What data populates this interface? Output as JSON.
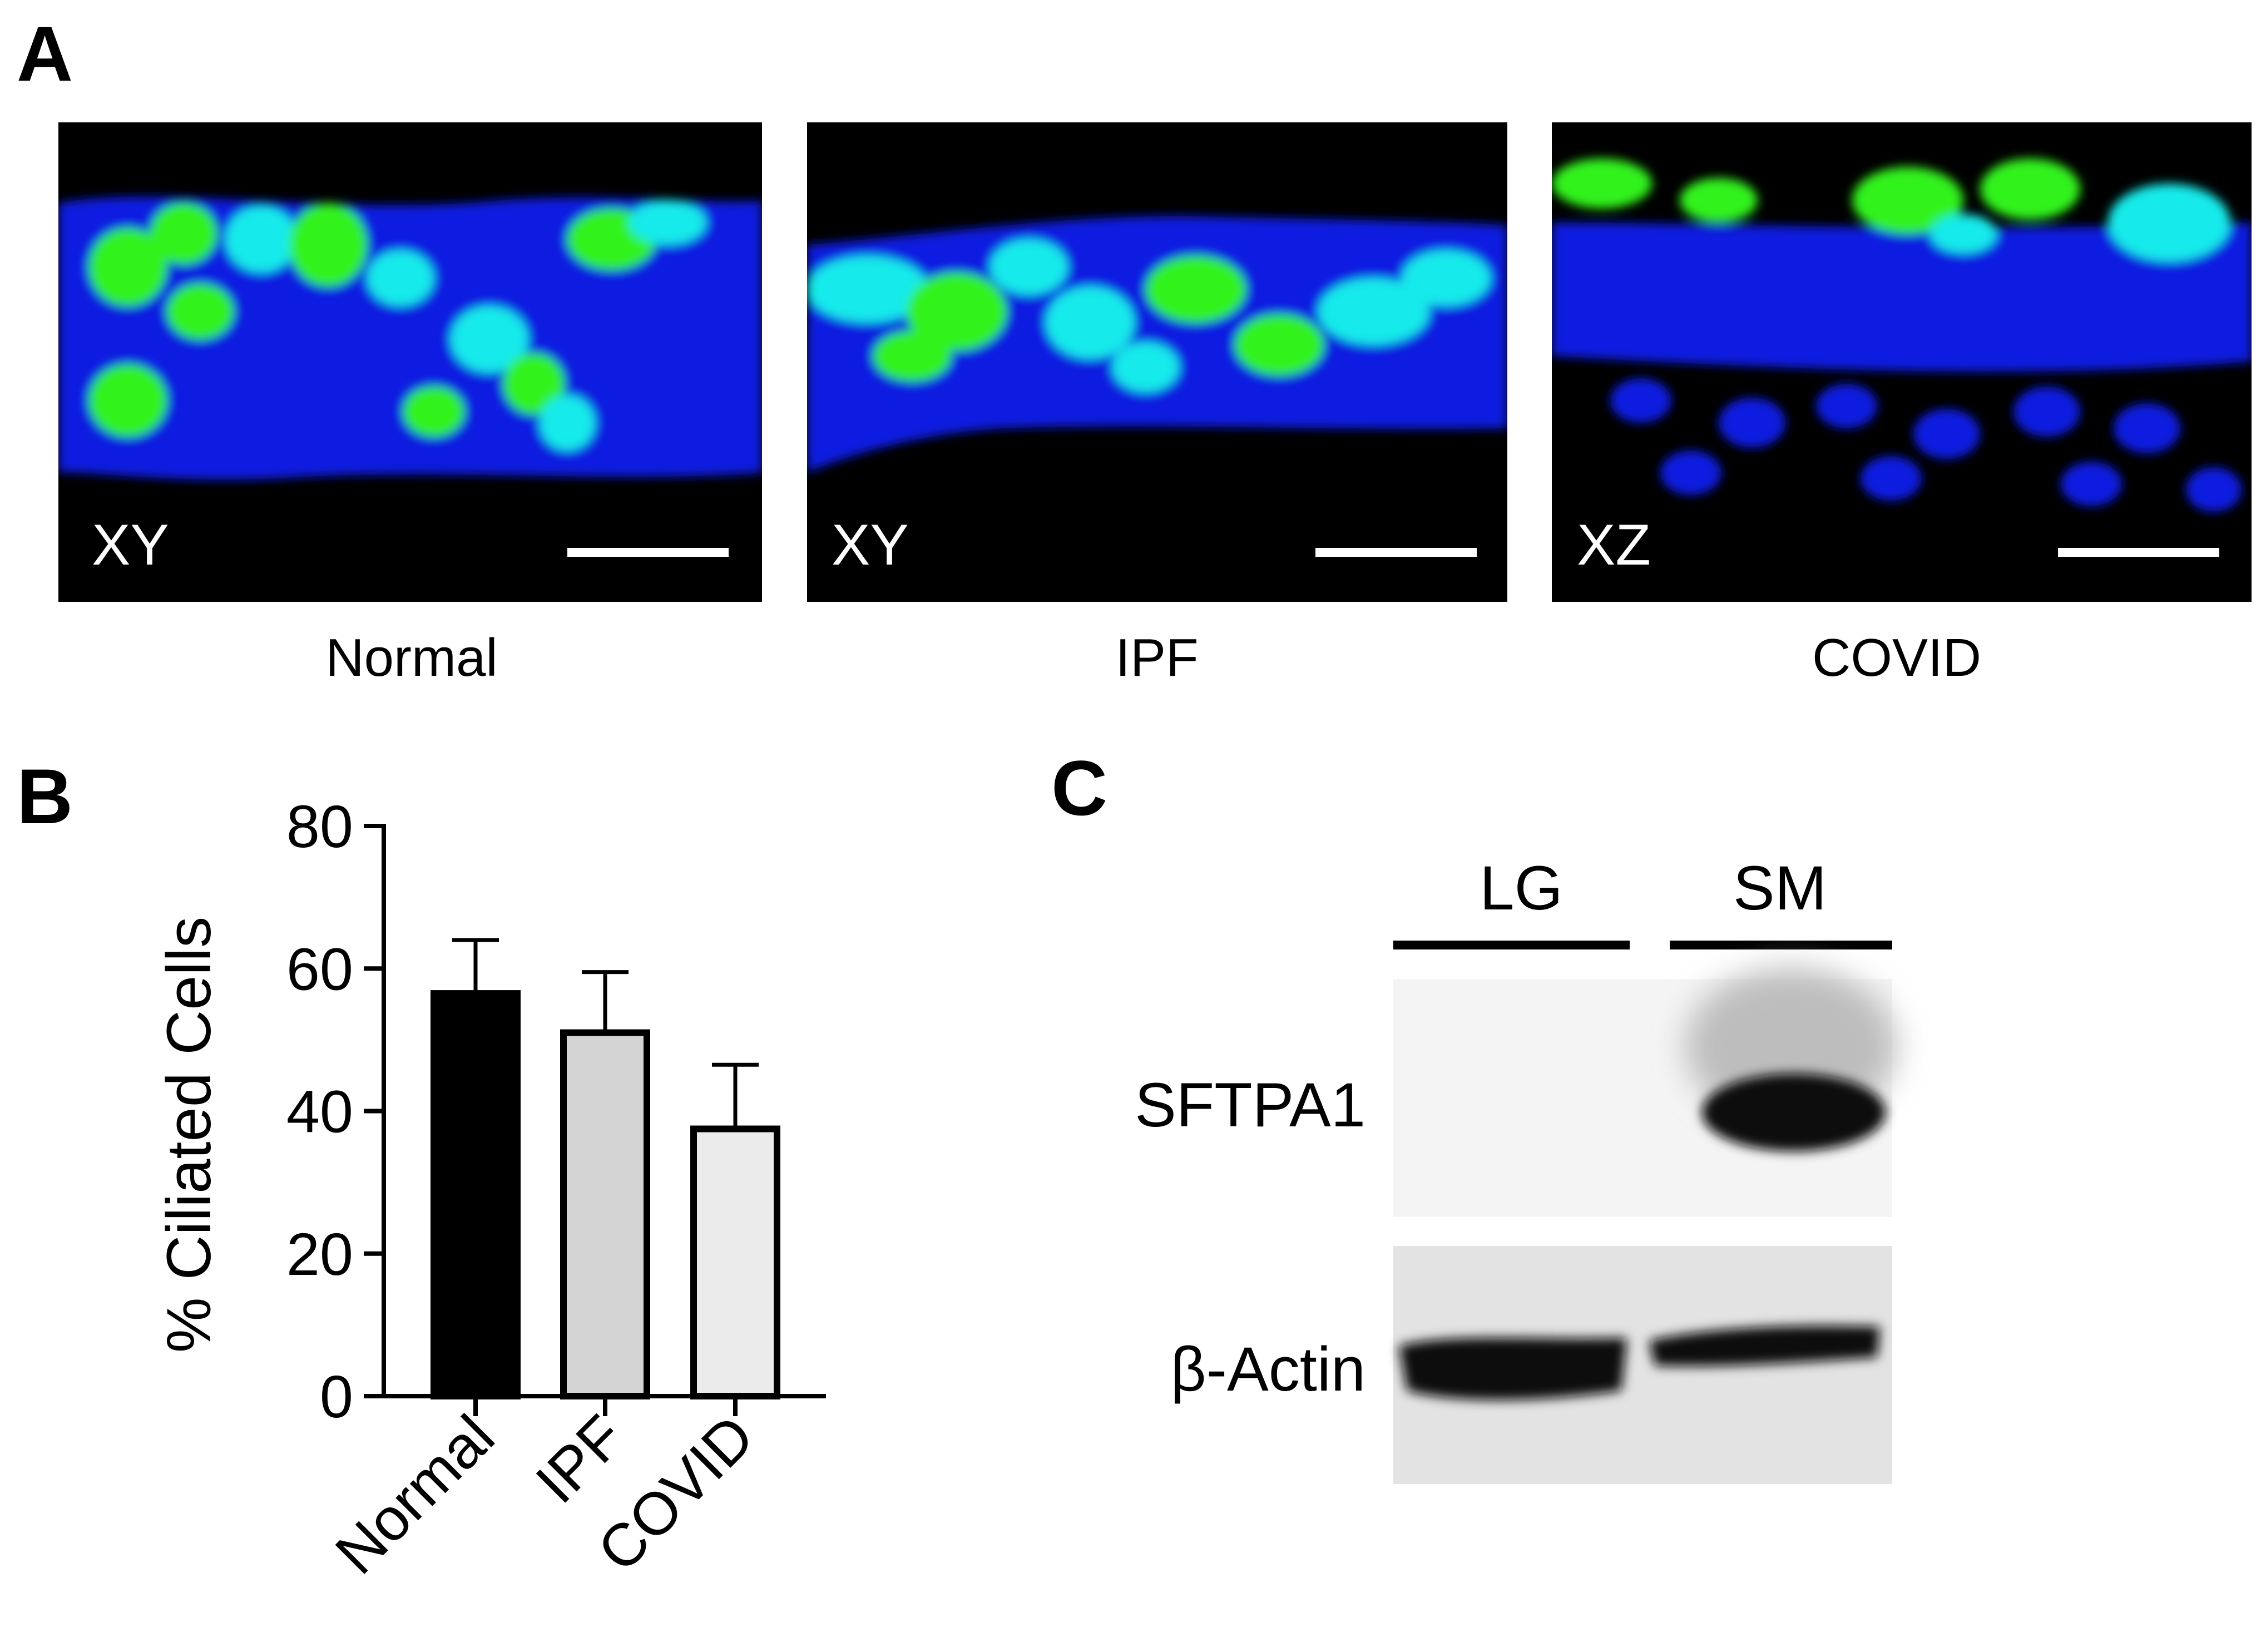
{
  "panels": {
    "A": {
      "letter": "A",
      "images": [
        {
          "view": "XY",
          "caption": "Normal"
        },
        {
          "view": "XY",
          "caption": "IPF"
        },
        {
          "view": "XZ",
          "caption": "COVID"
        }
      ],
      "colors": {
        "nuclei": "#0a1be0",
        "cilia": "#33f21a",
        "overlap": "#12eaea",
        "background": "#000000"
      }
    },
    "B": {
      "letter": "B"
    },
    "C": {
      "letter": "C",
      "lanes": [
        "LG",
        "SM"
      ],
      "rows": [
        "SFTPA1",
        "β-Actin"
      ]
    }
  },
  "chart_data": {
    "type": "bar",
    "categories": [
      "Normal",
      "IPF",
      "COVID"
    ],
    "values": [
      56.5,
      51,
      37.5
    ],
    "error_upper": [
      64,
      59.5,
      46.5
    ],
    "bar_colors": [
      "#000000",
      "#d4d4d4",
      "#ebebeb"
    ],
    "ylabel": "% Ciliated Cells",
    "xlabel": "",
    "ylim": [
      0,
      80
    ],
    "yticks": [
      0,
      20,
      40,
      60,
      80
    ],
    "grid": false
  }
}
